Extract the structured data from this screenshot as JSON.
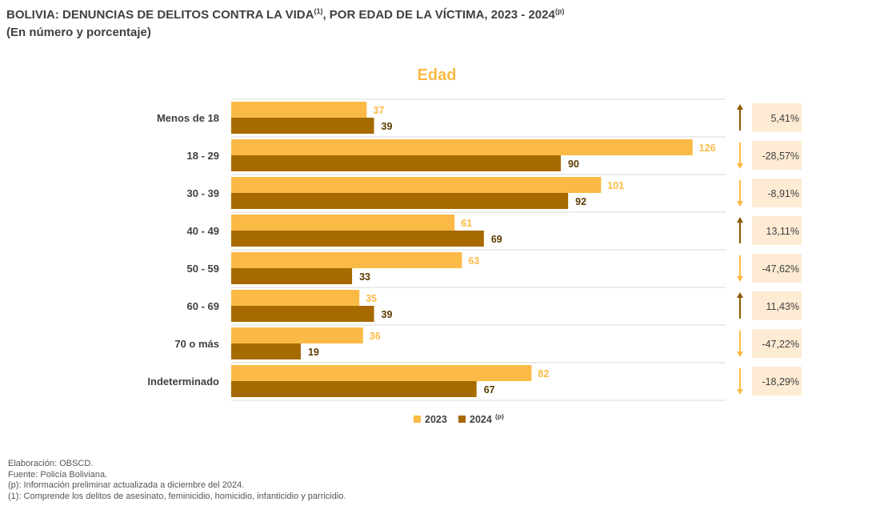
{
  "title": {
    "main": "BOLIVIA: DENUNCIAS DE DELITOS CONTRA LA VIDA",
    "main_sup": "(1)",
    "main_tail": ", POR EDAD DE LA VÍCTIMA, 2023 - 2024",
    "tail_sup": "(p)",
    "subtitle": "(En número y porcentaje)"
  },
  "chart_data": {
    "type": "bar",
    "orientation": "horizontal",
    "title": "Edad",
    "categories": [
      "Menos de 18",
      "18 - 29",
      "30 - 39",
      "40 - 49",
      "50 - 59",
      "60 - 69",
      "70 o más",
      "Indeterminado"
    ],
    "series": [
      {
        "name": "2023",
        "values": [
          37,
          126,
          101,
          61,
          63,
          35,
          36,
          82
        ],
        "color": "#FBBA45"
      },
      {
        "name": "2024",
        "name_sup": "(p)",
        "values": [
          39,
          90,
          92,
          69,
          33,
          39,
          19,
          67
        ],
        "color": "#A66A00"
      }
    ],
    "changes": [
      "5,41%",
      "-28,57%",
      "-8,91%",
      "13,11%",
      "-47,62%",
      "11,43%",
      "-47,22%",
      "-18,29%"
    ],
    "change_direction": [
      "up",
      "down",
      "down",
      "up",
      "down",
      "up",
      "down",
      "down"
    ],
    "xlim": [
      0,
      135
    ],
    "legend": "bottom",
    "colors": {
      "up_arrow": "#8B5A00",
      "down_arrow": "#FBBA45",
      "change_box": "#FDEBD3",
      "title": "#FBBA45",
      "grid": "#D9D9D9"
    }
  },
  "notes": [
    "Elaboración: OBSCD.",
    "Fuente: Policía Boliviana.",
    "(p): Información preliminar actualizada a diciembre del 2024.",
    "(1): Comprende los delitos de asesinato, feminicidio, homicidio, infanticidio y parricidio."
  ]
}
